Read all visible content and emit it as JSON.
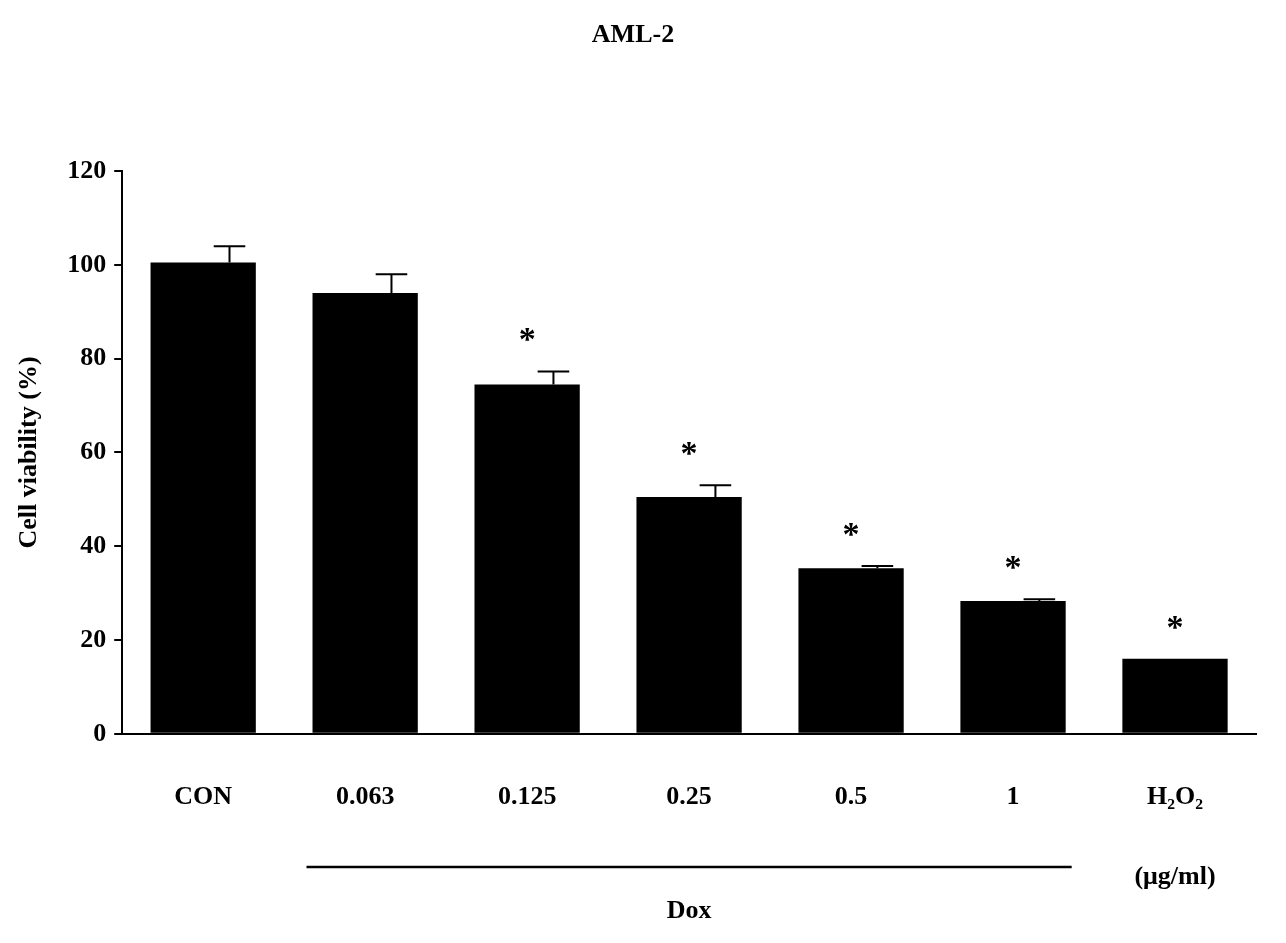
{
  "chart_data": {
    "type": "bar",
    "title": "AML-2",
    "y_label": "Cell viability (%)",
    "categories": [
      "CON",
      "0.063",
      "0.125",
      "0.25",
      "0.5",
      "1",
      "H₂O₂"
    ],
    "values": [
      100.5,
      94,
      74.5,
      50.5,
      35.3,
      28.3,
      16
    ],
    "errors": [
      3.5,
      4,
      2.8,
      2.5,
      0.5,
      0.4,
      0
    ],
    "annotations": [
      null,
      null,
      "*",
      "*",
      "*",
      "*",
      "*"
    ],
    "x_unit": "(μg/ml)",
    "group": {
      "label": "Dox",
      "from": "0.063",
      "to": "1"
    },
    "color": "#000000",
    "ylim": [
      0,
      120
    ],
    "yticks": [
      0,
      20,
      40,
      60,
      80,
      100,
      120
    ],
    "grid": false
  }
}
